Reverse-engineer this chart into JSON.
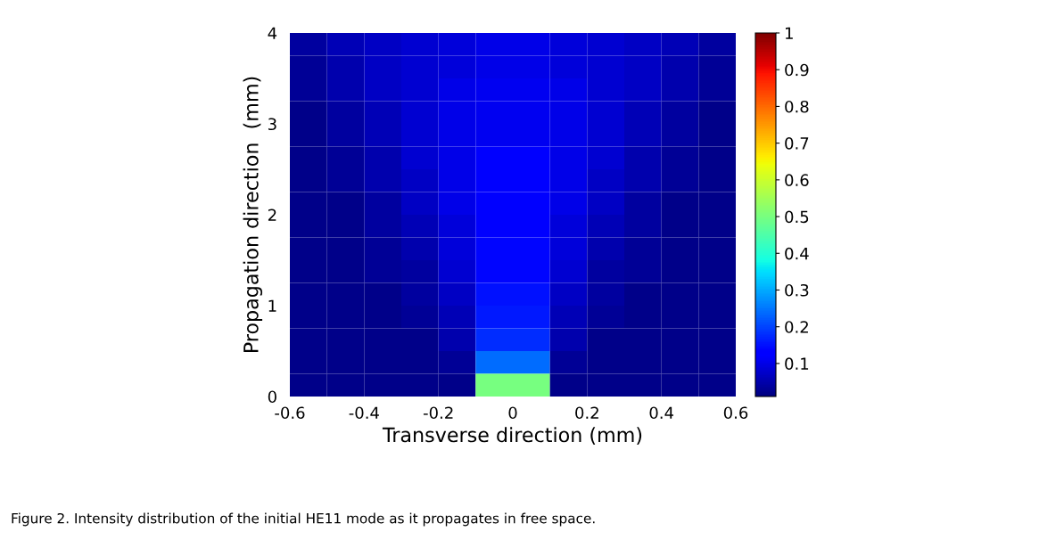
{
  "chart_data": {
    "type": "heatmap",
    "xlabel": "Transverse direction (mm)",
    "ylabel": "Propagation direction  (mm)",
    "annotations": [
      "Figure 2. Intensity distribution of the initial HE11 mode as it propagates in free space."
    ],
    "x": [
      -0.55,
      -0.45,
      -0.35,
      -0.25,
      -0.15,
      -0.05,
      0.05,
      0.15,
      0.25,
      0.35,
      0.45,
      0.55
    ],
    "y": [
      3.875,
      3.625,
      3.375,
      3.125,
      2.875,
      2.625,
      2.375,
      2.125,
      1.875,
      1.625,
      1.375,
      1.125,
      0.875,
      0.625,
      0.375,
      0.125
    ],
    "cells": [
      [
        0.04,
        0.06,
        0.07,
        0.08,
        0.09,
        0.1,
        0.1,
        0.09,
        0.08,
        0.07,
        0.06,
        0.04
      ],
      [
        0.03,
        0.05,
        0.07,
        0.08,
        0.09,
        0.1,
        0.1,
        0.09,
        0.08,
        0.07,
        0.05,
        0.03
      ],
      [
        0.03,
        0.05,
        0.07,
        0.08,
        0.1,
        0.11,
        0.11,
        0.1,
        0.08,
        0.07,
        0.05,
        0.03
      ],
      [
        0.02,
        0.04,
        0.06,
        0.08,
        0.1,
        0.11,
        0.11,
        0.1,
        0.08,
        0.06,
        0.04,
        0.02
      ],
      [
        0.02,
        0.04,
        0.06,
        0.08,
        0.1,
        0.11,
        0.11,
        0.1,
        0.08,
        0.06,
        0.04,
        0.02
      ],
      [
        0.02,
        0.03,
        0.05,
        0.08,
        0.1,
        0.12,
        0.12,
        0.1,
        0.08,
        0.05,
        0.03,
        0.02
      ],
      [
        0.02,
        0.03,
        0.05,
        0.07,
        0.1,
        0.12,
        0.12,
        0.1,
        0.07,
        0.05,
        0.03,
        0.02
      ],
      [
        0.02,
        0.02,
        0.04,
        0.07,
        0.1,
        0.13,
        0.13,
        0.1,
        0.07,
        0.04,
        0.02,
        0.02
      ],
      [
        0.02,
        0.02,
        0.04,
        0.06,
        0.09,
        0.13,
        0.13,
        0.09,
        0.06,
        0.04,
        0.02,
        0.02
      ],
      [
        0.02,
        0.02,
        0.03,
        0.05,
        0.09,
        0.14,
        0.14,
        0.09,
        0.05,
        0.03,
        0.02,
        0.02
      ],
      [
        0.02,
        0.02,
        0.03,
        0.04,
        0.08,
        0.14,
        0.14,
        0.08,
        0.04,
        0.03,
        0.02,
        0.02
      ],
      [
        0.02,
        0.02,
        0.02,
        0.04,
        0.07,
        0.15,
        0.15,
        0.07,
        0.04,
        0.02,
        0.02,
        0.02
      ],
      [
        0.02,
        0.02,
        0.02,
        0.03,
        0.06,
        0.16,
        0.16,
        0.06,
        0.03,
        0.02,
        0.02,
        0.02
      ],
      [
        0.02,
        0.02,
        0.02,
        0.02,
        0.05,
        0.18,
        0.18,
        0.05,
        0.02,
        0.02,
        0.02,
        0.02
      ],
      [
        0.02,
        0.02,
        0.02,
        0.02,
        0.03,
        0.24,
        0.24,
        0.03,
        0.02,
        0.02,
        0.02,
        0.02
      ],
      [
        0.02,
        0.02,
        0.02,
        0.02,
        0.02,
        0.5,
        0.5,
        0.02,
        0.02,
        0.02,
        0.02,
        0.02
      ]
    ],
    "xlim": [
      -0.6,
      0.6
    ],
    "ylim": [
      0,
      4
    ],
    "xticks": [
      -0.6,
      -0.4,
      -0.2,
      0,
      0.2,
      0.4,
      0.6
    ],
    "yticks": [
      0,
      1,
      2,
      3,
      4
    ],
    "clim": [
      0.01,
      1
    ],
    "cticks": [
      0.1,
      0.2,
      0.3,
      0.4,
      0.5,
      0.6,
      0.7,
      0.8,
      0.9,
      1
    ],
    "grid": false
  }
}
